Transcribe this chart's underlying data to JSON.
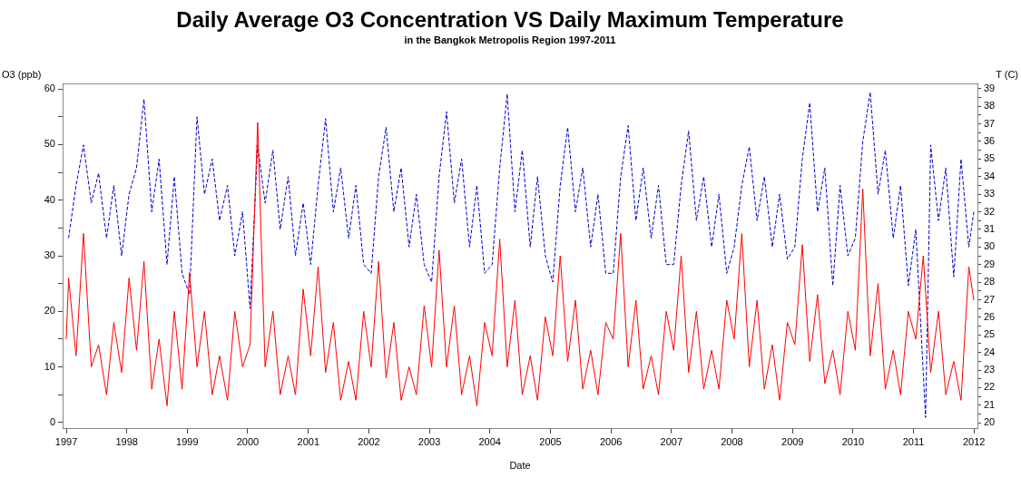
{
  "chart_data": {
    "type": "line",
    "title": "Daily Average O3 Concentration VS Daily Maximum Temperature",
    "subtitle": "in the Bangkok Metropolis Region 1997-2011",
    "xlabel": "Date",
    "ylabel": "O3 (ppb)",
    "y2label": "T (C)",
    "marker": "none",
    "grid": false,
    "legend": false,
    "xlim": [
      "1996-12-10",
      "2012-01-22"
    ],
    "xticks": [
      "1997",
      "1998",
      "1999",
      "2000",
      "2001",
      "2002",
      "2003",
      "2004",
      "2005",
      "2006",
      "2007",
      "2008",
      "2009",
      "2010",
      "2011",
      "2012"
    ],
    "ylim": [
      -1,
      61
    ],
    "yticks": [
      0,
      {
        "value": 5,
        "label": null
      },
      10,
      {
        "value": 15,
        "label": null
      },
      20,
      {
        "value": 25,
        "label": null
      },
      30,
      {
        "value": 35,
        "label": null
      },
      40,
      {
        "value": 45,
        "label": null
      },
      50,
      {
        "value": 55,
        "label": null
      },
      60
    ],
    "y2lim": [
      19.7,
      39.3
    ],
    "y2ticks": [
      20,
      {
        "value": 20.5,
        "label": null
      },
      21,
      {
        "value": 21.5,
        "label": null
      },
      22,
      {
        "value": 22.5,
        "label": null
      },
      23,
      {
        "value": 23.5,
        "label": null
      },
      24,
      {
        "value": 24.5,
        "label": null
      },
      25,
      {
        "value": 25.5,
        "label": null
      },
      26,
      {
        "value": 26.5,
        "label": null
      },
      27,
      {
        "value": 27.5,
        "label": null
      },
      28,
      {
        "value": 28.5,
        "label": null
      },
      29,
      {
        "value": 29.5,
        "label": null
      },
      30,
      {
        "value": 30.5,
        "label": null
      },
      31,
      {
        "value": 31.5,
        "label": null
      },
      32,
      {
        "value": 32.5,
        "label": null
      },
      33,
      {
        "value": 33.5,
        "label": null
      },
      34,
      {
        "value": 34.5,
        "label": null
      },
      35,
      {
        "value": 35.5,
        "label": null
      },
      36,
      {
        "value": 36.5,
        "label": null
      },
      37,
      {
        "value": 37.5,
        "label": null
      },
      38,
      {
        "value": 38.5,
        "label": null
      },
      39
    ],
    "series": [
      {
        "color": "#ff0000",
        "line_style": "solid",
        "x": [
          "1997-01-01",
          "1997-01-15",
          "1997-03-01",
          "1997-04-15",
          "1997-06-01",
          "1997-07-15",
          "1997-09-01",
          "1997-10-15",
          "1997-12-01",
          "1998-01-15",
          "1998-03-01",
          "1998-04-15",
          "1998-06-01",
          "1998-07-15",
          "1998-09-01",
          "1998-10-15",
          "1998-12-01",
          "1999-01-15",
          "1999-03-01",
          "1999-04-15",
          "1999-06-01",
          "1999-07-15",
          "1999-09-01",
          "1999-10-15",
          "1999-12-01",
          "2000-01-15",
          "2000-03-01",
          "2000-04-15",
          "2000-06-01",
          "2000-07-15",
          "2000-09-01",
          "2000-10-15",
          "2000-12-01",
          "2001-01-15",
          "2001-03-01",
          "2001-04-15",
          "2001-06-01",
          "2001-07-15",
          "2001-09-01",
          "2001-10-15",
          "2001-12-01",
          "2002-01-15",
          "2002-03-01",
          "2002-04-15",
          "2002-06-01",
          "2002-07-15",
          "2002-09-01",
          "2002-10-15",
          "2002-12-01",
          "2003-01-15",
          "2003-03-01",
          "2003-04-15",
          "2003-06-01",
          "2003-07-15",
          "2003-09-01",
          "2003-10-15",
          "2003-12-01",
          "2004-01-15",
          "2004-03-01",
          "2004-04-15",
          "2004-06-01",
          "2004-07-15",
          "2004-09-01",
          "2004-10-15",
          "2004-12-01",
          "2005-01-15",
          "2005-03-01",
          "2005-04-15",
          "2005-06-01",
          "2005-07-15",
          "2005-09-01",
          "2005-10-15",
          "2005-12-01",
          "2006-01-15",
          "2006-03-01",
          "2006-04-15",
          "2006-06-01",
          "2006-07-15",
          "2006-09-01",
          "2006-10-15",
          "2006-12-01",
          "2007-01-15",
          "2007-03-01",
          "2007-04-15",
          "2007-06-01",
          "2007-07-15",
          "2007-09-01",
          "2007-10-15",
          "2007-12-01",
          "2008-01-15",
          "2008-03-01",
          "2008-04-15",
          "2008-06-01",
          "2008-07-15",
          "2008-09-01",
          "2008-10-15",
          "2008-12-01",
          "2009-01-15",
          "2009-03-01",
          "2009-04-15",
          "2009-06-01",
          "2009-07-15",
          "2009-09-01",
          "2009-10-15",
          "2009-12-01",
          "2010-01-15",
          "2010-03-01",
          "2010-04-15",
          "2010-06-01",
          "2010-07-15",
          "2010-09-01",
          "2010-10-15",
          "2010-12-01",
          "2011-01-15",
          "2011-03-01",
          "2011-04-15",
          "2011-06-01",
          "2011-07-15",
          "2011-09-01",
          "2011-10-15",
          "2011-12-01",
          "2011-12-31"
        ],
        "values": [
          15,
          26,
          12,
          34,
          10,
          14,
          5,
          18,
          9,
          26,
          13,
          29,
          6,
          15,
          3,
          20,
          6,
          27,
          10,
          20,
          5,
          12,
          4,
          20,
          10,
          14,
          54,
          10,
          20,
          5,
          12,
          5,
          24,
          12,
          28,
          9,
          18,
          4,
          11,
          4,
          20,
          10,
          29,
          8,
          18,
          4,
          10,
          5,
          21,
          10,
          31,
          10,
          21,
          5,
          12,
          3,
          18,
          12,
          33,
          10,
          22,
          5,
          12,
          4,
          19,
          12,
          30,
          11,
          22,
          6,
          13,
          5,
          18,
          15,
          34,
          10,
          22,
          6,
          12,
          5,
          20,
          13,
          30,
          9,
          20,
          6,
          13,
          6,
          22,
          15,
          34,
          10,
          22,
          6,
          14,
          4,
          18,
          14,
          32,
          11,
          23,
          7,
          13,
          5,
          20,
          13,
          42,
          12,
          25,
          6,
          13,
          5,
          20,
          15,
          30,
          9,
          20,
          5,
          11,
          4,
          28,
          22
        ]
      },
      {
        "color": "#0000cc",
        "line_style": "dashed",
        "axis": "y2",
        "x": [
          "1997-01-15",
          "1997-03-01",
          "1997-04-15",
          "1997-06-01",
          "1997-07-15",
          "1997-09-01",
          "1997-10-15",
          "1997-12-01",
          "1998-01-15",
          "1998-03-01",
          "1998-04-15",
          "1998-06-01",
          "1998-07-15",
          "1998-09-01",
          "1998-10-15",
          "1998-12-01",
          "1999-01-15",
          "1999-03-01",
          "1999-04-15",
          "1999-06-01",
          "1999-07-15",
          "1999-09-01",
          "1999-10-15",
          "1999-12-01",
          "2000-01-15",
          "2000-03-01",
          "2000-04-15",
          "2000-06-01",
          "2000-07-15",
          "2000-09-01",
          "2000-10-15",
          "2000-12-01",
          "2001-01-15",
          "2001-03-01",
          "2001-04-15",
          "2001-06-01",
          "2001-07-15",
          "2001-09-01",
          "2001-10-15",
          "2001-12-01",
          "2002-01-15",
          "2002-03-01",
          "2002-04-15",
          "2002-06-01",
          "2002-07-15",
          "2002-09-01",
          "2002-10-15",
          "2002-12-01",
          "2003-01-15",
          "2003-03-01",
          "2003-04-15",
          "2003-06-01",
          "2003-07-15",
          "2003-09-01",
          "2003-10-15",
          "2003-12-01",
          "2004-01-15",
          "2004-03-01",
          "2004-04-15",
          "2004-06-01",
          "2004-07-15",
          "2004-09-01",
          "2004-10-15",
          "2004-12-01",
          "2005-01-15",
          "2005-03-01",
          "2005-04-15",
          "2005-06-01",
          "2005-07-15",
          "2005-09-01",
          "2005-10-15",
          "2005-12-01",
          "2006-01-15",
          "2006-03-01",
          "2006-04-15",
          "2006-06-01",
          "2006-07-15",
          "2006-09-01",
          "2006-10-15",
          "2006-12-01",
          "2007-01-15",
          "2007-03-01",
          "2007-04-15",
          "2007-06-01",
          "2007-07-15",
          "2007-09-01",
          "2007-10-15",
          "2007-12-01",
          "2008-01-15",
          "2008-03-01",
          "2008-04-15",
          "2008-06-01",
          "2008-07-15",
          "2008-09-01",
          "2008-10-15",
          "2008-12-01",
          "2009-01-15",
          "2009-03-01",
          "2009-04-15",
          "2009-06-01",
          "2009-07-15",
          "2009-09-01",
          "2009-10-15",
          "2009-12-01",
          "2010-01-15",
          "2010-03-01",
          "2010-04-15",
          "2010-06-01",
          "2010-07-15",
          "2010-09-01",
          "2010-10-15",
          "2010-12-01",
          "2011-01-15",
          "2011-03-15",
          "2011-04-15",
          "2011-06-01",
          "2011-07-15",
          "2011-09-01",
          "2011-10-15",
          "2011-12-01",
          "2011-12-31"
        ],
        "values": [
          30.5,
          33.5,
          35.8,
          32.5,
          34.2,
          30.5,
          33.5,
          29.5,
          33,
          34.5,
          38.4,
          32,
          35,
          29,
          34,
          28.5,
          27.3,
          37.4,
          33,
          35,
          31.5,
          33.5,
          29.5,
          32,
          26.5,
          35.8,
          32.5,
          35.5,
          31,
          34,
          29.5,
          32.5,
          29,
          33.5,
          37.3,
          32,
          34.5,
          30.5,
          33.5,
          29,
          28.5,
          34,
          36.8,
          32,
          34.5,
          30,
          33,
          29,
          28,
          34,
          37.7,
          32.5,
          35,
          30,
          33.5,
          28.5,
          29,
          34.5,
          38.7,
          32,
          35.5,
          30,
          34,
          29.5,
          28,
          33.5,
          36.8,
          32,
          34.5,
          30,
          33,
          28.5,
          28.5,
          34,
          36.9,
          31.5,
          34.5,
          30.5,
          33.5,
          29,
          29,
          33.5,
          36.6,
          31.5,
          34,
          30,
          33,
          28.5,
          30,
          33.5,
          35.7,
          31.5,
          34,
          30,
          33,
          29.3,
          30,
          35,
          38.2,
          32,
          34.5,
          27.8,
          33.5,
          29.5,
          30.5,
          36,
          38.8,
          33,
          35.5,
          30.5,
          33.5,
          27.8,
          31,
          20.3,
          35.8,
          31.5,
          34.5,
          28.3,
          35,
          30,
          32
        ]
      }
    ]
  }
}
